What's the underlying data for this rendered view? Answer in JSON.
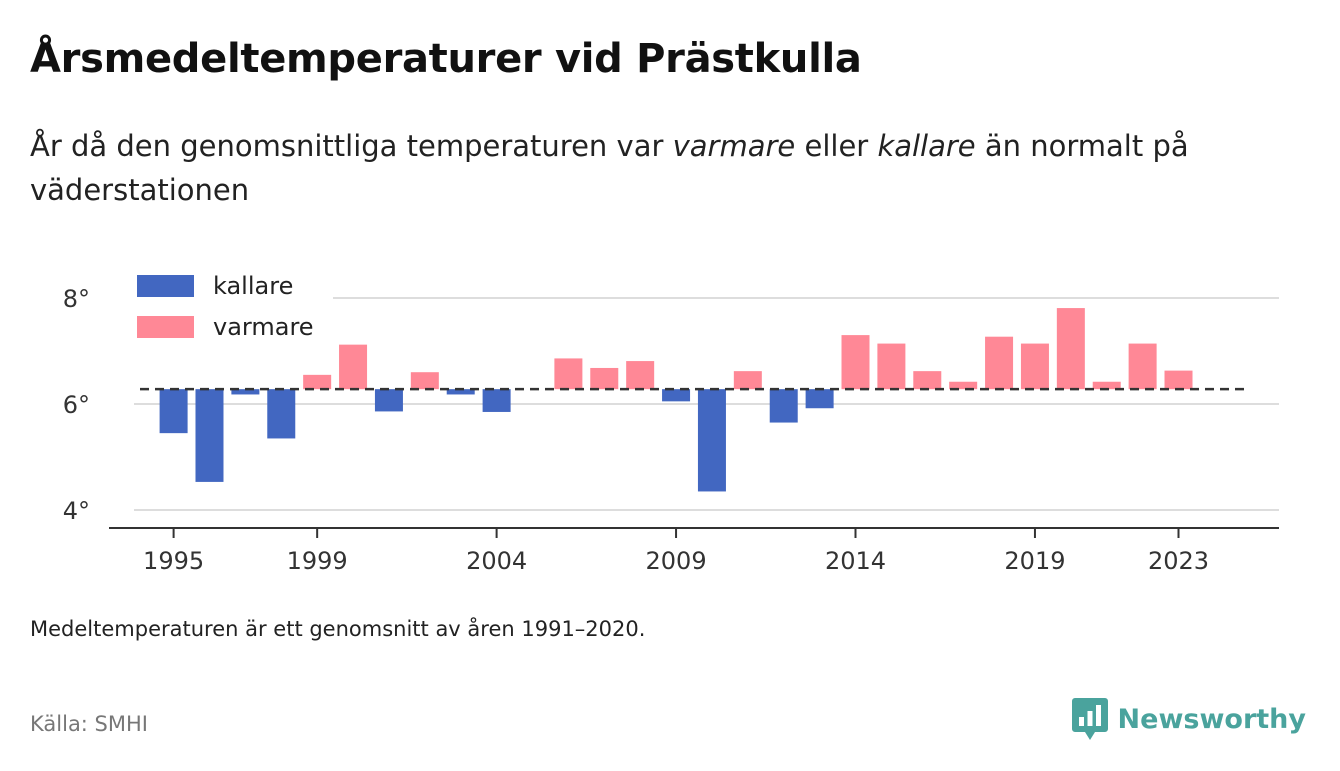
{
  "title": "Årsmedeltemperaturer vid Prästkulla",
  "subtitle": {
    "part1": "År då den genomsnittliga temperaturen var ",
    "warm_word": "varmare",
    "part2": " eller ",
    "cold_word": "kallare",
    "part3": " än normalt på väderstationen"
  },
  "note": "Medeltemperaturen är ett genomsnitt av åren 1991–2020.",
  "source": "Källa: SMHI",
  "brand": "Newsworthy",
  "colors": {
    "cold": "#4267c1",
    "warm": "#ff8896",
    "grid": "#dddddd",
    "axis": "#333333",
    "brand": "#4aa39d"
  },
  "chart_data": {
    "type": "bar",
    "baseline": 6.28,
    "ylim": [
      3.7,
      8.4
    ],
    "xlim": [
      1993.2,
      2025.8
    ],
    "y_ticks": [
      {
        "value": 8,
        "label": "8°"
      },
      {
        "value": 6,
        "label": "6°"
      },
      {
        "value": 4,
        "label": "4°"
      }
    ],
    "x_ticks": [
      {
        "value": 1995,
        "label": "1995"
      },
      {
        "value": 1999,
        "label": "1999"
      },
      {
        "value": 2004,
        "label": "2004"
      },
      {
        "value": 2009,
        "label": "2009"
      },
      {
        "value": 2014,
        "label": "2014"
      },
      {
        "value": 2019,
        "label": "2019"
      },
      {
        "value": 2023,
        "label": "2023"
      }
    ],
    "legend": {
      "position": "top-left",
      "items": [
        {
          "key": "cold",
          "label": "kallare"
        },
        {
          "key": "warm",
          "label": "varmare"
        }
      ]
    },
    "grid": true,
    "years": [
      1995,
      1996,
      1997,
      1998,
      1999,
      2000,
      2001,
      2002,
      2003,
      2004,
      2005,
      2006,
      2007,
      2008,
      2009,
      2010,
      2011,
      2012,
      2013,
      2014,
      2015,
      2016,
      2017,
      2018,
      2019,
      2020,
      2021,
      2022,
      2023
    ],
    "values": [
      5.45,
      4.53,
      6.18,
      5.35,
      6.55,
      7.12,
      5.86,
      6.6,
      6.18,
      5.85,
      6.28,
      6.86,
      6.68,
      6.81,
      6.05,
      4.35,
      6.62,
      5.65,
      5.92,
      7.3,
      7.14,
      6.62,
      6.42,
      7.27,
      7.14,
      7.81,
      6.42,
      7.14,
      6.63
    ]
  }
}
